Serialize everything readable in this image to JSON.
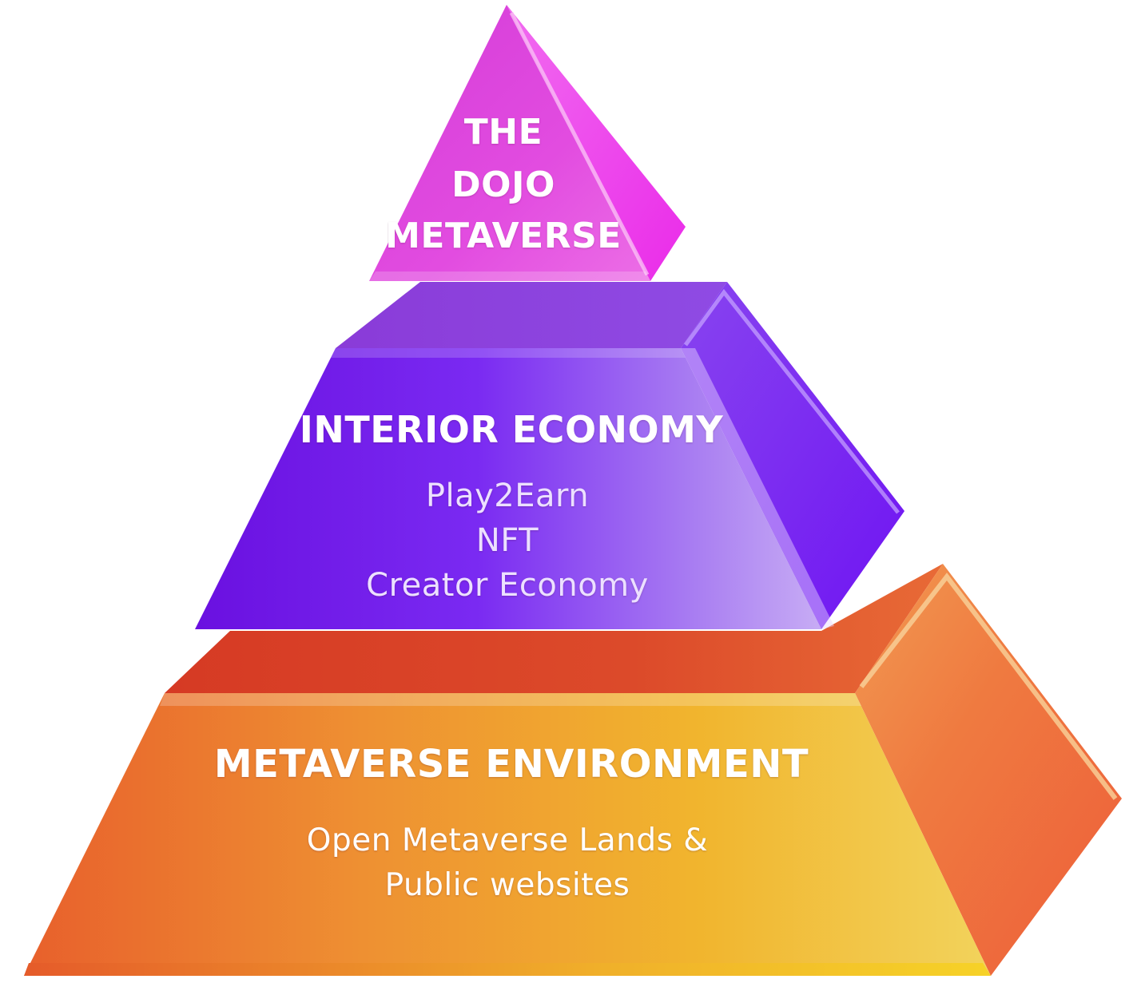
{
  "tiers": {
    "top": {
      "lines": [
        "THE",
        "DOJO",
        "METAVERSE"
      ],
      "colors": {
        "front": "#e13ee0",
        "side": "#f03cf0",
        "highlight": "#f7a6f5"
      }
    },
    "middle": {
      "title": "INTERIOR ECONOMY",
      "items": [
        "Play2Earn",
        "NFT",
        "Creator Economy"
      ],
      "colors": {
        "front": "#7a1af0",
        "side": "#7a22f3",
        "top": "#8a44dd",
        "highlight": "#c6a7f5"
      }
    },
    "bottom": {
      "title": "METAVERSE ENVIRONMENT",
      "lines": [
        "Open Metaverse Lands &",
        "Public websites"
      ],
      "colors": {
        "front": "#eea33a",
        "side": "#ee7a3e",
        "top": "#d8452a",
        "highlight": "#f4d660"
      }
    }
  }
}
